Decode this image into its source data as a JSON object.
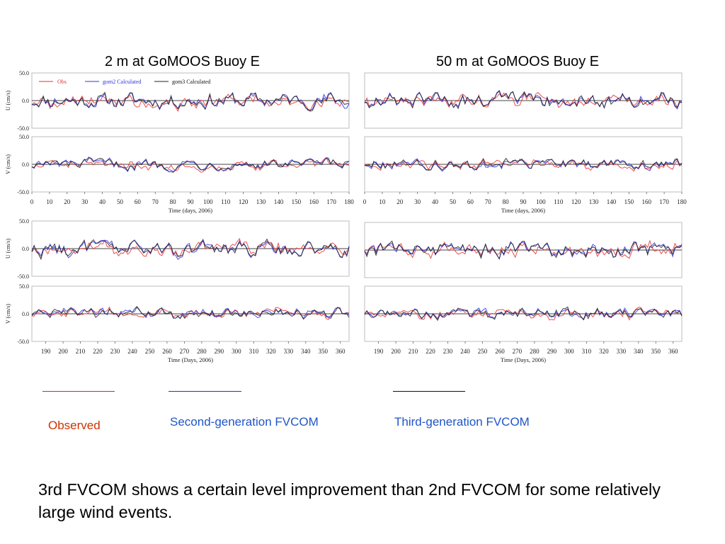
{
  "slide": {
    "left_title": "2 m at GoMOOS Buoy E",
    "right_title": "50 m at GoMOOS Buoy E",
    "legend": [
      {
        "label": "Observed",
        "color": "#cc3300",
        "line_color": "#dd2222"
      },
      {
        "label": "Second-generation FVCOM",
        "color": "#1f55c8",
        "line_color": "#2233bb"
      },
      {
        "label": "Third-generation FVCOM",
        "color": "#1f55c8",
        "line_color": "#111111"
      }
    ],
    "caption": "3rd FVCOM shows a certain level improvement than 2nd FVCOM for some relatively large wind events."
  },
  "plot_legend": {
    "obs": "Obs",
    "gom2": "gom2 Calculated",
    "gom3": "gom3 Calculated"
  },
  "series_colors": {
    "obs": "#e83030",
    "gom2": "#3030e0",
    "gom3": "#222222"
  },
  "chart_data": [
    {
      "type": "line",
      "panel": "2m-U-early",
      "ylabel": "U  (cm/s)",
      "ylim": [
        -50,
        50
      ],
      "yticks": [
        "50.0",
        "0.0",
        "-50.0"
      ],
      "xlim": [
        0,
        180
      ],
      "xticks": [
        0,
        10,
        20,
        30,
        40,
        50,
        60,
        70,
        80,
        90,
        100,
        110,
        120,
        130,
        140,
        150,
        160,
        170,
        180
      ],
      "xlabel": "",
      "legend": true
    },
    {
      "type": "line",
      "panel": "2m-V-early",
      "ylabel": "V  (cm/s)",
      "ylim": [
        -50,
        50
      ],
      "yticks": [
        "50.0",
        "0.0",
        "-50.0"
      ],
      "xlim": [
        0,
        180
      ],
      "xticks": [
        0,
        10,
        20,
        30,
        40,
        50,
        60,
        70,
        80,
        90,
        100,
        110,
        120,
        130,
        140,
        150,
        160,
        170,
        180
      ],
      "xlabel": "Time (days, 2006)",
      "show_xticks": true
    },
    {
      "type": "line",
      "panel": "2m-U-late",
      "ylabel": "U  (cm/s)",
      "ylim": [
        -50,
        50
      ],
      "yticks": [
        "50.0",
        "0.0",
        "-50.0"
      ],
      "xlim": [
        182,
        365
      ],
      "xticks": [
        190,
        200,
        210,
        220,
        230,
        240,
        250,
        260,
        270,
        280,
        290,
        300,
        310,
        320,
        330,
        340,
        350,
        360
      ],
      "xlabel": ""
    },
    {
      "type": "line",
      "panel": "2m-V-late",
      "ylabel": "V  (cm/s)",
      "ylim": [
        -50,
        50
      ],
      "yticks": [
        "50.0",
        "0.0",
        "-50.0"
      ],
      "xlim": [
        182,
        365
      ],
      "xticks": [
        190,
        200,
        210,
        220,
        230,
        240,
        250,
        260,
        270,
        280,
        290,
        300,
        310,
        320,
        330,
        340,
        350,
        360
      ],
      "xlabel": "Time (Days, 2006)",
      "show_xticks": true
    },
    {
      "type": "line",
      "panel": "50m-U-early",
      "ylabel": "",
      "ylim": [
        -50,
        50
      ],
      "yticks": [],
      "xlim": [
        0,
        180
      ],
      "xticks": [
        0,
        10,
        20,
        30,
        40,
        50,
        60,
        70,
        80,
        90,
        100,
        110,
        120,
        130,
        140,
        150,
        160,
        170,
        180
      ],
      "xlabel": ""
    },
    {
      "type": "line",
      "panel": "50m-V-early",
      "ylabel": "",
      "ylim": [
        -50,
        50
      ],
      "yticks": [],
      "xlim": [
        0,
        180
      ],
      "xticks": [
        0,
        10,
        20,
        30,
        40,
        50,
        60,
        70,
        80,
        90,
        100,
        110,
        120,
        130,
        140,
        150,
        160,
        170,
        180
      ],
      "xlabel": "Time (days, 2006)",
      "show_xticks": true
    },
    {
      "type": "line",
      "panel": "50m-U-late",
      "ylabel": "",
      "ylim": [
        -50,
        50
      ],
      "yticks": [],
      "xlim": [
        182,
        365
      ],
      "xticks": [
        190,
        200,
        210,
        220,
        230,
        240,
        250,
        260,
        270,
        280,
        290,
        300,
        310,
        320,
        330,
        340,
        350,
        360
      ],
      "xlabel": ""
    },
    {
      "type": "line",
      "panel": "50m-V-late",
      "ylabel": "",
      "ylim": [
        -50,
        50
      ],
      "yticks": [],
      "xlim": [
        182,
        365
      ],
      "xticks": [
        190,
        200,
        210,
        220,
        230,
        240,
        250,
        260,
        270,
        280,
        290,
        300,
        310,
        320,
        330,
        340,
        350,
        360
      ],
      "xlabel": "Time (Days, 2006)",
      "show_xticks": true
    }
  ]
}
